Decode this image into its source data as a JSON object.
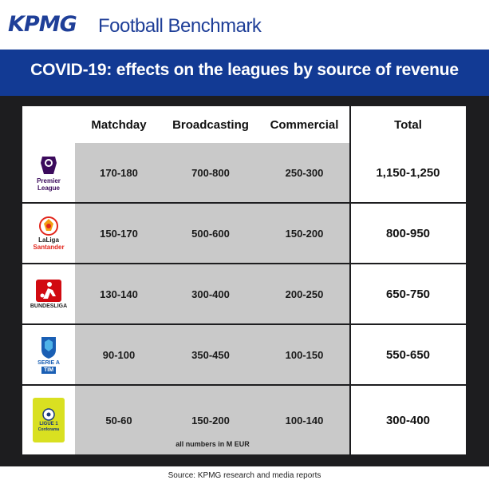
{
  "header": {
    "logo": "KPMG",
    "product": "Football Benchmark"
  },
  "banner": {
    "title": "COVID-19: effects on the leagues by source of revenue"
  },
  "table": {
    "columns": [
      "Matchday",
      "Broadcasting",
      "Commercial",
      "Total"
    ],
    "rows": [
      {
        "league": "Premier League",
        "logo_text": [
          "Premier",
          "League"
        ],
        "color": "#3b0a5c",
        "matchday": "170-180",
        "broadcasting": "700-800",
        "commercial": "250-300",
        "total": "1,150-1,250"
      },
      {
        "league": "LaLiga Santander",
        "logo_text": [
          "LaLiga",
          "Santander"
        ],
        "color": "#e2251b",
        "matchday": "150-170",
        "broadcasting": "500-600",
        "commercial": "150-200",
        "total": "800-950"
      },
      {
        "league": "Bundesliga",
        "logo_text": [
          "BUNDESLIGA"
        ],
        "color": "#d10a11",
        "matchday": "130-140",
        "broadcasting": "300-400",
        "commercial": "200-250",
        "total": "650-750"
      },
      {
        "league": "Serie A TIM",
        "logo_text": [
          "SERIE A",
          "TIM"
        ],
        "color": "#1a5fb4",
        "matchday": "90-100",
        "broadcasting": "350-450",
        "commercial": "100-150",
        "total": "550-650"
      },
      {
        "league": "Ligue 1 Conforama",
        "logo_text": [
          "LIGUE 1",
          "Conforama"
        ],
        "color": "#d9e021",
        "matchday": "50-60",
        "broadcasting": "150-200",
        "commercial": "100-140",
        "total": "300-400"
      }
    ],
    "note": "all numbers in M EUR"
  },
  "source": "Source: KPMG research and media reports"
}
